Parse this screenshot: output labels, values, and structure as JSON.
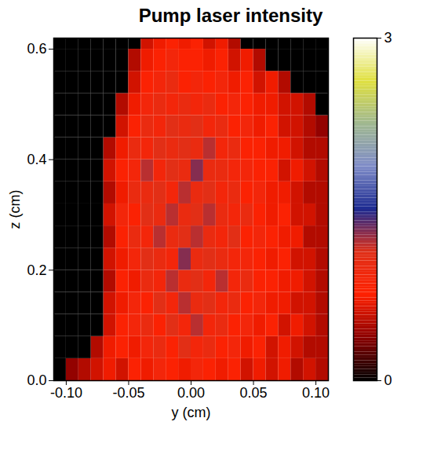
{
  "chart_data": {
    "type": "heatmap",
    "title": "Pump laser intensity",
    "xlabel": "y (cm)",
    "ylabel": "z (cm)",
    "xlim": [
      -0.11,
      0.11
    ],
    "xticks": [
      {
        "value": -0.1,
        "label": "-0.10"
      },
      {
        "value": -0.05,
        "label": "-0.05"
      },
      {
        "value": 0,
        "label": "0.00"
      },
      {
        "value": 0.05,
        "label": "0.05"
      },
      {
        "value": 0.1,
        "label": "0.10"
      }
    ],
    "ylim": [
      0,
      0.62
    ],
    "yticks": [
      {
        "value": 0,
        "label": "0.0"
      },
      {
        "value": 0.2,
        "label": "0.2"
      },
      {
        "value": 0.4,
        "label": "0.4"
      },
      {
        "value": 0.6,
        "label": "0.6"
      }
    ],
    "x_edges": [
      -0.11,
      -0.1,
      -0.09,
      -0.08,
      -0.07,
      -0.06,
      -0.05,
      -0.04,
      -0.03,
      -0.02,
      -0.01,
      0,
      0.01,
      0.02,
      0.03,
      0.04,
      0.05,
      0.06,
      0.07,
      0.08,
      0.09,
      0.1,
      0.11
    ],
    "y_edges": [
      0,
      0.04,
      0.08,
      0.12,
      0.16,
      0.2,
      0.24,
      0.28,
      0.32,
      0.36,
      0.4,
      0.44,
      0.48,
      0.52,
      0.56,
      0.6,
      0.64
    ],
    "values": [
      [
        0,
        0.4,
        0.5,
        0.6,
        0.7,
        0.6,
        0.8,
        0.7,
        0.9,
        0.8,
        0.7,
        0.9,
        0.8,
        0.7,
        0.8,
        0.6,
        0.7,
        0.6,
        0.7,
        0.5,
        0.6,
        0.5
      ],
      [
        0,
        0,
        0,
        0.5,
        0.7,
        0.8,
        0.7,
        0.9,
        1.0,
        0.8,
        1.1,
        0.9,
        1.0,
        0.8,
        0.9,
        0.7,
        0.8,
        0.6,
        0.7,
        0.6,
        0.5,
        0.5
      ],
      [
        0,
        0,
        0,
        0,
        0.6,
        0.8,
        0.9,
        1.0,
        0.8,
        1.1,
        0.9,
        1.2,
        0.9,
        1.0,
        0.8,
        0.9,
        0.7,
        0.8,
        0.6,
        0.7,
        0.6,
        0.5
      ],
      [
        0,
        0,
        0,
        0,
        0.6,
        0.7,
        0.9,
        0.8,
        1.1,
        0.9,
        1.2,
        1.0,
        1.1,
        0.9,
        1.0,
        0.8,
        0.9,
        0.7,
        0.7,
        0.6,
        0.6,
        0.5
      ],
      [
        0,
        0,
        0,
        0,
        0.5,
        0.8,
        0.7,
        1.0,
        0.9,
        1.2,
        1.0,
        1.1,
        0.9,
        1.2,
        0.9,
        1.0,
        0.8,
        0.8,
        0.7,
        0.7,
        0.6,
        0.5
      ],
      [
        0,
        0,
        0,
        0,
        0.6,
        0.7,
        0.9,
        1.1,
        1.0,
        0.9,
        1.3,
        1.0,
        1.1,
        1.0,
        0.9,
        0.9,
        0.8,
        0.7,
        0.8,
        0.6,
        0.6,
        0.5
      ],
      [
        0,
        0,
        0,
        0,
        0.5,
        0.8,
        1.0,
        0.9,
        1.2,
        1.0,
        1.1,
        1.2,
        1.0,
        0.9,
        1.1,
        0.8,
        0.9,
        0.8,
        0.7,
        0.7,
        0.5,
        0.5
      ],
      [
        0,
        0,
        0,
        0,
        0.6,
        0.9,
        0.8,
        1.1,
        1.0,
        1.2,
        1.0,
        1.1,
        1.2,
        1.0,
        0.9,
        1.0,
        0.8,
        0.7,
        0.8,
        0.6,
        0.6,
        0.5
      ],
      [
        0,
        0,
        0,
        0,
        0.5,
        0.7,
        1.0,
        1.0,
        1.1,
        0.9,
        1.2,
        1.0,
        1.1,
        0.9,
        1.0,
        0.8,
        0.9,
        0.7,
        0.7,
        0.6,
        0.5,
        0.5
      ],
      [
        0,
        0,
        0,
        0,
        0.6,
        0.8,
        0.9,
        1.2,
        0.9,
        1.1,
        1.0,
        1.3,
        1.0,
        1.0,
        0.9,
        0.9,
        0.8,
        0.8,
        0.6,
        0.7,
        0.6,
        0.5
      ],
      [
        0,
        0,
        0,
        0,
        0.5,
        0.7,
        1.0,
        0.9,
        1.1,
        1.0,
        1.1,
        1.0,
        1.2,
        0.9,
        1.0,
        0.8,
        0.8,
        0.7,
        0.7,
        0.6,
        0.5,
        0.5
      ],
      [
        0,
        0,
        0,
        0,
        0,
        0.6,
        0.8,
        1.0,
        0.9,
        1.1,
        1.0,
        1.1,
        0.9,
        1.0,
        0.8,
        0.9,
        0.7,
        0.8,
        0.6,
        0.6,
        0.5,
        0.4
      ],
      [
        0,
        0,
        0,
        0,
        0,
        0.5,
        0.7,
        0.9,
        1.0,
        0.9,
        1.0,
        0.9,
        1.0,
        0.8,
        0.9,
        0.8,
        0.7,
        0.7,
        0.6,
        0.6,
        0.5,
        0
      ],
      [
        0,
        0,
        0,
        0,
        0,
        0,
        0.6,
        0.8,
        0.9,
        1.0,
        0.8,
        0.9,
        0.8,
        0.9,
        0.7,
        0.8,
        0.6,
        0.7,
        0.5,
        0,
        0,
        0
      ],
      [
        0,
        0,
        0,
        0,
        0,
        0,
        0.5,
        0.7,
        0.8,
        0.9,
        0.8,
        0.8,
        0.7,
        0.8,
        0.6,
        0.7,
        0.5,
        0,
        0,
        0,
        0,
        0
      ],
      [
        0,
        0,
        0,
        0,
        0,
        0,
        0,
        0.6,
        0.7,
        0.8,
        0.7,
        0.8,
        0.6,
        0.7,
        0.5,
        0,
        0,
        0,
        0,
        0,
        0,
        0
      ]
    ],
    "colorbar": {
      "range": [
        0,
        3
      ],
      "ticks": [
        0,
        3
      ]
    }
  }
}
